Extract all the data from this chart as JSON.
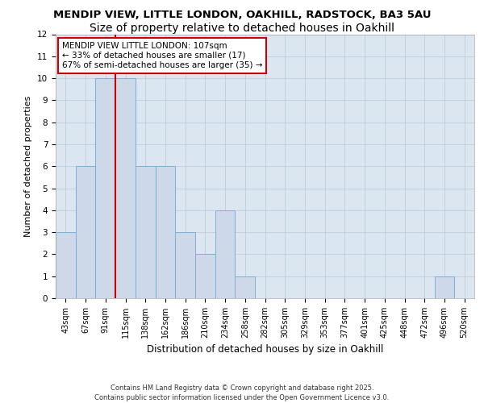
{
  "title1": "MENDIP VIEW, LITTLE LONDON, OAKHILL, RADSTOCK, BA3 5AU",
  "title2": "Size of property relative to detached houses in Oakhill",
  "xlabel": "Distribution of detached houses by size in Oakhill",
  "ylabel": "Number of detached properties",
  "categories": [
    "43sqm",
    "67sqm",
    "91sqm",
    "115sqm",
    "138sqm",
    "162sqm",
    "186sqm",
    "210sqm",
    "234sqm",
    "258sqm",
    "282sqm",
    "305sqm",
    "329sqm",
    "353sqm",
    "377sqm",
    "401sqm",
    "425sqm",
    "448sqm",
    "472sqm",
    "496sqm",
    "520sqm"
  ],
  "values": [
    3,
    6,
    10,
    10,
    6,
    6,
    3,
    2,
    4,
    1,
    0,
    0,
    0,
    0,
    0,
    0,
    0,
    0,
    0,
    1,
    0
  ],
  "bar_color": "#cdd9e8",
  "bar_edge_color": "#7aafd4",
  "vline_color": "#cc0000",
  "annotation_text": "MENDIP VIEW LITTLE LONDON: 107sqm\n← 33% of detached houses are smaller (17)\n67% of semi-detached houses are larger (35) →",
  "annotation_box_color": "white",
  "annotation_box_edge": "#cc0000",
  "ylim": [
    0,
    12
  ],
  "yticks": [
    0,
    1,
    2,
    3,
    4,
    5,
    6,
    7,
    8,
    9,
    10,
    11,
    12
  ],
  "background_color": "#dce6f0",
  "footer": "Contains HM Land Registry data © Crown copyright and database right 2025.\nContains public sector information licensed under the Open Government Licence v3.0.",
  "title1_fontsize": 9.5,
  "title2_fontsize": 10,
  "xlabel_fontsize": 8.5,
  "ylabel_fontsize": 8,
  "tick_fontsize": 7,
  "annotation_fontsize": 7.5,
  "footer_fontsize": 6
}
